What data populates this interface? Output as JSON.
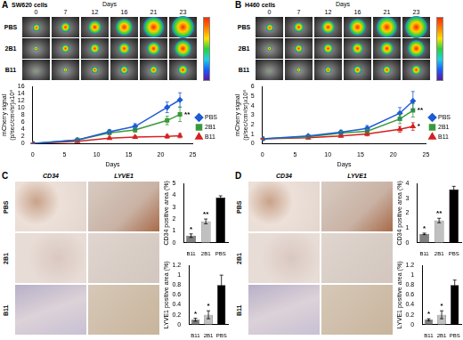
{
  "figure": {
    "panels": [
      {
        "letter": "A",
        "cells": "SW620 cells",
        "days_label": "Days",
        "days": [
          0,
          7,
          12,
          16,
          21,
          23
        ],
        "rows": [
          "PBS",
          "2B1",
          "B11"
        ]
      },
      {
        "letter": "B",
        "cells": "H460 cells",
        "days_label": "Days",
        "days": [
          0,
          7,
          12,
          16,
          21,
          23
        ],
        "rows": [
          "PBS",
          "2B1",
          "B11"
        ]
      },
      {
        "letter": "C",
        "columns": [
          "CD34",
          "LYVE1"
        ],
        "rows": [
          "PBS",
          "2B1",
          "B11"
        ]
      },
      {
        "letter": "D",
        "columns": [
          "CD34",
          "LYVE1"
        ],
        "rows": [
          "PBS",
          "2B1",
          "B11"
        ]
      }
    ]
  },
  "chart_data": [
    {
      "type": "line",
      "x_label": "Days",
      "y_label": [
        "mCherry signal",
        "(p/sec/cm²/sr)x10⁸"
      ],
      "x": [
        0,
        7,
        12,
        16,
        21,
        23
      ],
      "xlim": [
        0,
        25
      ],
      "xticks": [
        0,
        5,
        10,
        15,
        20,
        25
      ],
      "ylim": [
        0,
        16
      ],
      "yticks": [
        0,
        2,
        4,
        6,
        8,
        10,
        12,
        14,
        16
      ],
      "grid": false,
      "legend": "right",
      "series": [
        {
          "name": "PBS",
          "color": "#1f5bd6",
          "marker": "diamond",
          "values": [
            0,
            1,
            3.3,
            4.8,
            10.2,
            12.3
          ],
          "errors": [
            0,
            0.3,
            0.6,
            0.8,
            1.5,
            2.0
          ]
        },
        {
          "name": "2B1",
          "color": "#3a9a3a",
          "marker": "square",
          "values": [
            0,
            1,
            3,
            3.8,
            6.5,
            8.2
          ],
          "errors": [
            0,
            0.3,
            0.5,
            0.6,
            1.2,
            2.0
          ]
        },
        {
          "name": "B11",
          "color": "#d62020",
          "marker": "triangle",
          "values": [
            0,
            0.6,
            1.5,
            1.8,
            2,
            2.2
          ],
          "errors": [
            0,
            0.2,
            0.3,
            0.4,
            0.5,
            0.6
          ]
        }
      ],
      "annotations": [
        {
          "series": "2B1",
          "text": "**"
        }
      ]
    },
    {
      "type": "line",
      "x_label": "Days",
      "y_label": [
        "mCherry signal",
        "(p/sec/cm²/sr)x10⁸"
      ],
      "x": [
        0,
        7,
        12,
        16,
        21,
        23
      ],
      "xlim": [
        0,
        25
      ],
      "xticks": [
        0,
        5,
        10,
        15,
        20,
        25
      ],
      "ylim": [
        0,
        6
      ],
      "yticks": [
        0,
        1,
        2,
        3,
        4,
        5,
        6
      ],
      "grid": false,
      "legend": "right",
      "series": [
        {
          "name": "PBS",
          "color": "#1f5bd6",
          "marker": "diamond",
          "values": [
            0.5,
            0.8,
            1.2,
            1.6,
            3.2,
            4.5
          ],
          "errors": [
            0.05,
            0.1,
            0.2,
            0.3,
            0.6,
            1.0
          ]
        },
        {
          "name": "2B1",
          "color": "#3a9a3a",
          "marker": "square",
          "values": [
            0.5,
            0.7,
            1.1,
            1.3,
            2.6,
            3.5
          ],
          "errors": [
            0.05,
            0.1,
            0.2,
            0.2,
            0.5,
            0.7
          ]
        },
        {
          "name": "B11",
          "color": "#d62020",
          "marker": "triangle",
          "values": [
            0.5,
            0.6,
            0.8,
            1.0,
            1.5,
            1.8
          ],
          "errors": [
            0.05,
            0.1,
            0.1,
            0.2,
            0.3,
            0.4
          ]
        }
      ],
      "annotations": [
        {
          "series": "2B1",
          "text": "**"
        },
        {
          "series": "B11",
          "text": "*"
        }
      ]
    },
    {
      "type": "bar",
      "y_label": "CD34 positive area (%)",
      "categories": [
        "B11",
        "2B1",
        "PBS"
      ],
      "values": [
        0.6,
        1.8,
        3.8
      ],
      "errors": [
        0.15,
        0.2,
        0.15
      ],
      "colors": [
        "#808080",
        "#c0c0c0",
        "#000000"
      ],
      "ylim": [
        0,
        5
      ],
      "yticks": [
        0,
        1,
        2,
        3,
        4,
        5
      ],
      "grid": false,
      "annotations": [
        {
          "category": "B11",
          "text": "*"
        },
        {
          "category": "2B1",
          "text": "**"
        }
      ]
    },
    {
      "type": "bar",
      "y_label": "LYVE1 positive area (%)",
      "categories": [
        "B11",
        "2B1",
        "PBS"
      ],
      "values": [
        0.1,
        0.2,
        0.8
      ],
      "errors": [
        0.03,
        0.08,
        0.2
      ],
      "colors": [
        "#808080",
        "#c0c0c0",
        "#000000"
      ],
      "ylim": [
        0,
        1.2
      ],
      "yticks": [
        0,
        0.2,
        0.4,
        0.6,
        0.8,
        1,
        1.2
      ],
      "grid": false,
      "annotations": [
        {
          "category": "B11",
          "text": "*"
        },
        {
          "category": "2B1",
          "text": "*"
        }
      ]
    },
    {
      "type": "bar",
      "y_label": "CD34 positive area (%)",
      "categories": [
        "B11",
        "2B1",
        "PBS"
      ],
      "values": [
        0.6,
        1.5,
        3.6
      ],
      "errors": [
        0.05,
        0.15,
        0.2
      ],
      "colors": [
        "#808080",
        "#c0c0c0",
        "#000000"
      ],
      "ylim": [
        0,
        4
      ],
      "yticks": [
        0,
        1,
        2,
        3,
        4
      ],
      "grid": false,
      "annotations": [
        {
          "category": "B11",
          "text": "*"
        },
        {
          "category": "2B1",
          "text": "**"
        }
      ]
    },
    {
      "type": "bar",
      "y_label": "LYVE1 positive area (%)",
      "categories": [
        "B11",
        "2B1",
        "PBS"
      ],
      "values": [
        0.1,
        0.2,
        0.8
      ],
      "errors": [
        0.02,
        0.08,
        0.1
      ],
      "colors": [
        "#808080",
        "#c0c0c0",
        "#000000"
      ],
      "ylim": [
        0,
        1.2
      ],
      "yticks": [
        0,
        0.2,
        0.4,
        0.6,
        0.8,
        1,
        1.2
      ],
      "grid": false,
      "annotations": [
        {
          "category": "B11",
          "text": "*"
        },
        {
          "category": "2B1",
          "text": "*"
        }
      ]
    }
  ]
}
